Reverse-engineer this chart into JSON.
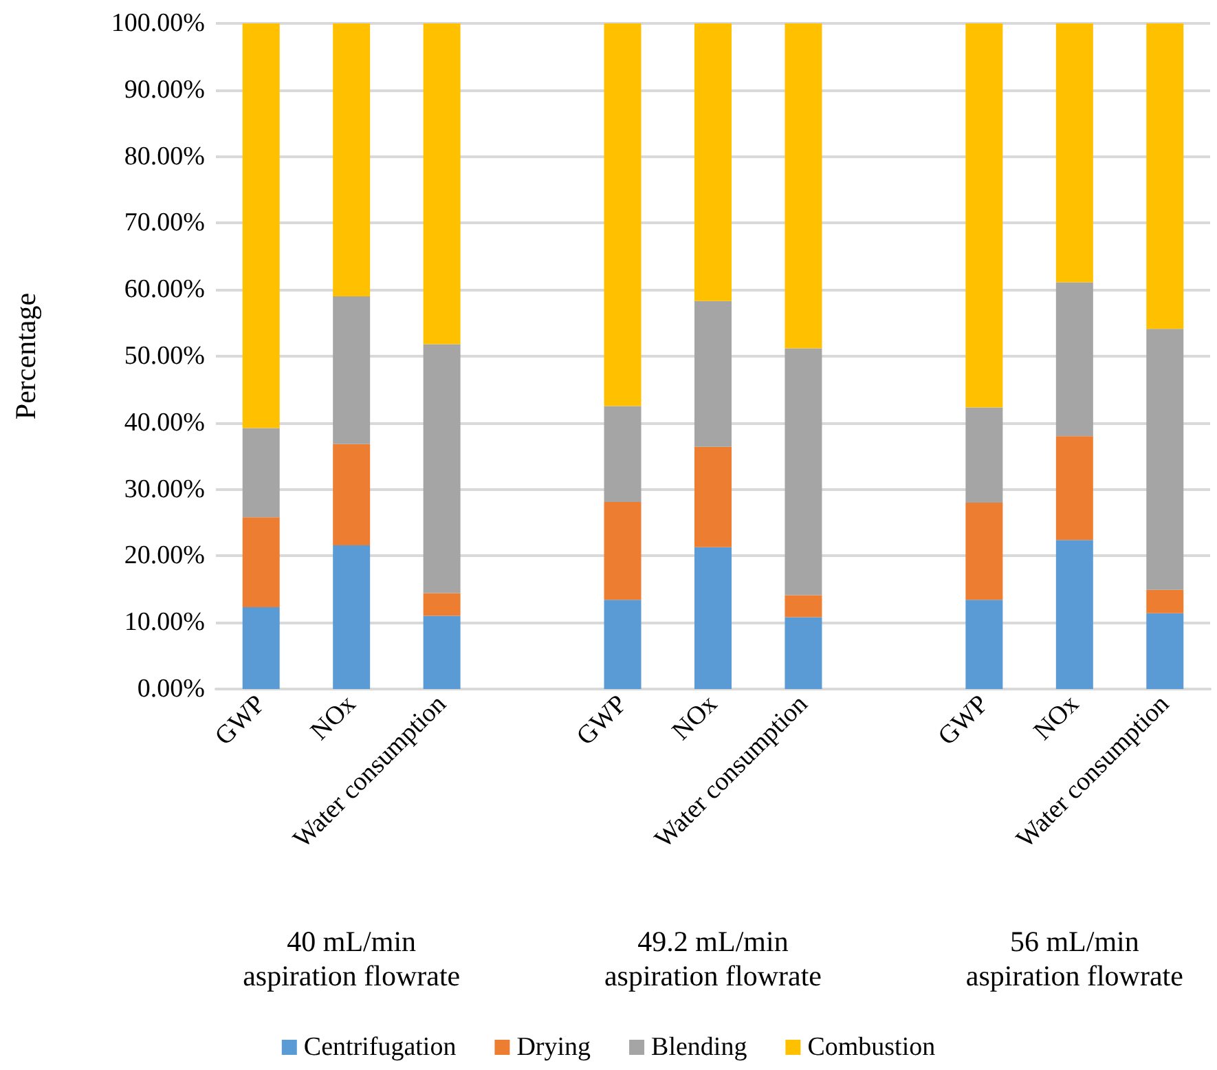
{
  "chart_data": {
    "type": "bar",
    "stacked": true,
    "ylabel": "Percentage",
    "categories": [
      "GWP",
      "NOx",
      "Water consumption",
      null,
      "GWP",
      "NOx",
      "Water consumption",
      null,
      "GWP",
      "NOx",
      "Water consumption"
    ],
    "series": [
      {
        "name": "Centrifugation",
        "color": "#5b9bd5",
        "values": [
          12.3,
          21.6,
          11.0,
          null,
          13.4,
          21.3,
          10.8,
          null,
          13.4,
          22.4,
          11.4
        ]
      },
      {
        "name": "Drying",
        "color": "#ed7d31",
        "values": [
          13.5,
          15.2,
          3.4,
          null,
          14.7,
          15.1,
          3.3,
          null,
          14.6,
          15.6,
          3.5
        ]
      },
      {
        "name": "Blending",
        "color": "#a5a5a5",
        "values": [
          13.4,
          22.2,
          37.4,
          null,
          14.4,
          21.9,
          37.1,
          null,
          14.3,
          23.1,
          39.2
        ]
      },
      {
        "name": "Combustion",
        "color": "#ffc000",
        "values": [
          60.8,
          41.0,
          48.2,
          null,
          57.5,
          41.7,
          48.8,
          null,
          57.7,
          38.9,
          45.9
        ]
      }
    ],
    "ylim": [
      0,
      100
    ],
    "yticks": [
      {
        "value": 0,
        "label": "0.00%"
      },
      {
        "value": 10,
        "label": "10.00%"
      },
      {
        "value": 20,
        "label": "20.00%"
      },
      {
        "value": 30,
        "label": "30.00%"
      },
      {
        "value": 40,
        "label": "40.00%"
      },
      {
        "value": 50,
        "label": "50.00%"
      },
      {
        "value": 60,
        "label": "60.00%"
      },
      {
        "value": 70,
        "label": "70.00%"
      },
      {
        "value": 80,
        "label": "80.00%"
      },
      {
        "value": 90,
        "label": "90.00%"
      },
      {
        "value": 100,
        "label": "100.00%"
      }
    ],
    "annotations": [
      "40 mL/min\naspiration flowrate",
      "49.2 mL/min\naspiration flowrate",
      "56 mL/min\naspiration flowrate"
    ],
    "grid": "y",
    "legend": "bottom"
  }
}
